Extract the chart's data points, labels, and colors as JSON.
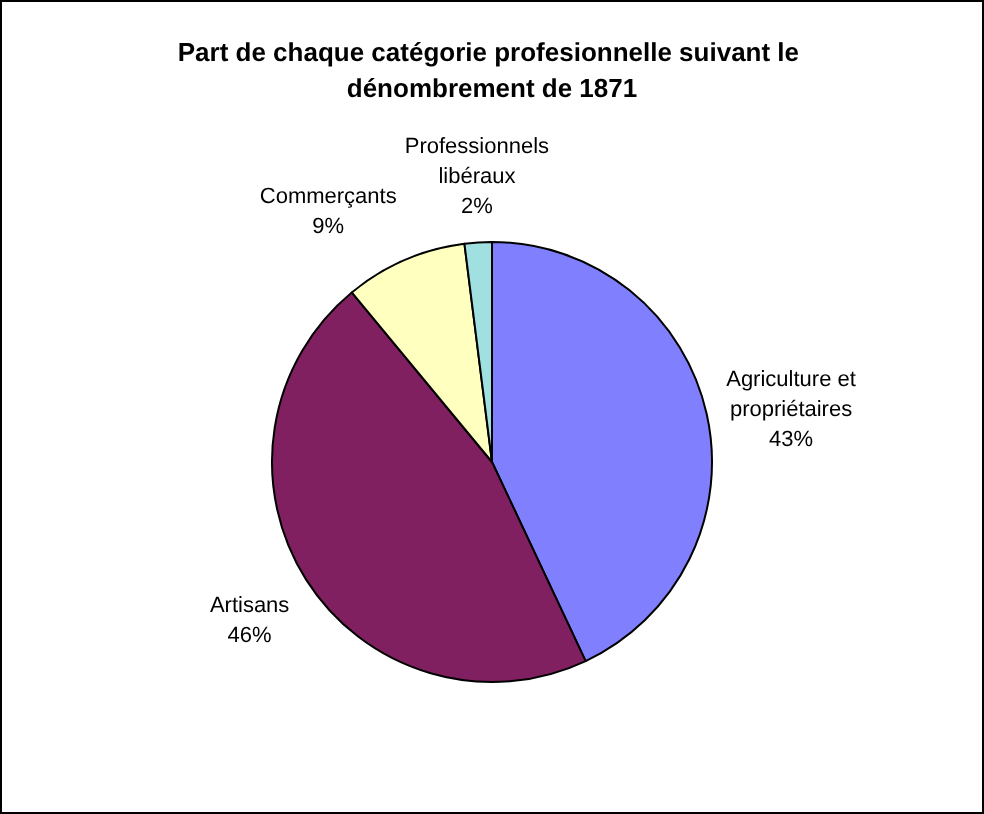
{
  "chart_data": {
    "type": "pie",
    "title": "Part de chaque catégorie profesionnelle suivant le dénombrement de 1871",
    "categories": [
      "Agriculture et propriétaires",
      "Artisans",
      "Commerçants",
      "Professionnels libéraux"
    ],
    "values": [
      43,
      46,
      9,
      2
    ],
    "colors": [
      "#8080ff",
      "#802060",
      "#ffffc0",
      "#a0e0e0"
    ],
    "value_labels": [
      "43%",
      "46%",
      "9%",
      "2%"
    ]
  }
}
